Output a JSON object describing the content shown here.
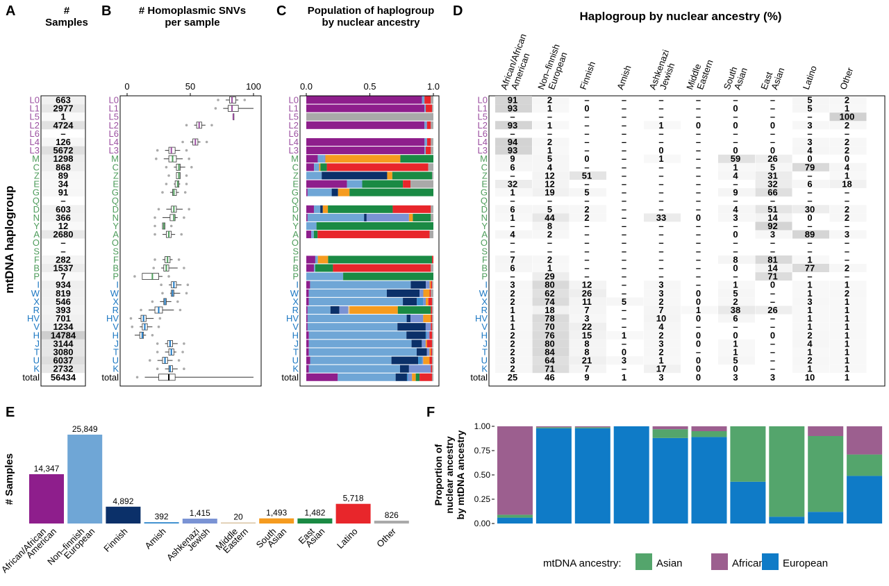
{
  "colors": {
    "African/African American": "#8e1e8c",
    "Non-finnish European": "#6fa6d6",
    "Finnish": "#0b3069",
    "Amish": "#3c8fcf",
    "Ashkenazi Jewish": "#7a93d4",
    "Middle Eastern": "#d9c3a0",
    "South Asian": "#f59b1f",
    "East Asian": "#1a8a44",
    "Latino": "#e8262b",
    "Other": "#a9a9a9",
    "clade_L": "#9b4fa0",
    "clade_A": "#4e9c5b",
    "clade_E": "#1b77c2",
    "mt_Asian": "#54a56c",
    "mt_African": "#9c5f8f",
    "mt_European": "#0f7bc7",
    "heat": "#c9c9c9"
  },
  "panels": {
    "A": {
      "letter": "A",
      "title_line1": "#",
      "title_line2": "Samples"
    },
    "B": {
      "letter": "B",
      "title_line1": "# Homoplasmic SNVs",
      "title_line2": "per sample",
      "ticks": [
        "0",
        "50",
        "100"
      ]
    },
    "C": {
      "letter": "C",
      "title_line1": "Population of haplogroup",
      "title_line2": "by nuclear ancestry",
      "ticks": [
        "0.0",
        "0.5",
        "1.0"
      ]
    },
    "D": {
      "letter": "D",
      "title": "Haplogroup by nuclear ancestry (%)"
    },
    "E": {
      "letter": "E",
      "ylabel": "# Samples"
    },
    "F": {
      "letter": "F",
      "ylabel1": "Proportion of",
      "ylabel2": "nuclear ancestry",
      "ylabel3": "by mtDNA ancestry",
      "legend_title": "mtDNA ancestry:"
    }
  },
  "row_axis_label": "mtDNA haplogroup",
  "haplogroups": [
    "L0",
    "L1",
    "L5",
    "L2",
    "L6",
    "L4",
    "L3",
    "M",
    "C",
    "Z",
    "E",
    "G",
    "Q",
    "D",
    "N",
    "Y",
    "A",
    "O",
    "S",
    "F",
    "B",
    "P",
    "I",
    "W",
    "X",
    "R",
    "HV",
    "V",
    "H",
    "J",
    "T",
    "U",
    "K",
    "total"
  ],
  "counts": [
    "663",
    "2977",
    "1",
    "4724",
    "–",
    "126",
    "5672",
    "1298",
    "868",
    "89",
    "34",
    "91",
    "–",
    "603",
    "366",
    "12",
    "2680",
    "–",
    "–",
    "282",
    "1537",
    "7",
    "934",
    "819",
    "546",
    "393",
    "701",
    "1234",
    "14784",
    "3144",
    "3080",
    "6037",
    "2732",
    "56434"
  ],
  "ancestry_labels": [
    [
      "African/African",
      "American"
    ],
    [
      "Non–finnish",
      "European"
    ],
    [
      "Finnish"
    ],
    [
      "Amish"
    ],
    [
      "Ashkenazi",
      "Jewish"
    ],
    [
      "Middle",
      "Eastern"
    ],
    [
      "South",
      "Asian"
    ],
    [
      "East",
      "Asian"
    ],
    [
      "Latino"
    ],
    [
      "Other"
    ]
  ],
  "pct_table": [
    [
      "91",
      "2",
      "–",
      "–",
      "–",
      "–",
      "–",
      "–",
      "5",
      "2"
    ],
    [
      "93",
      "1",
      "0",
      "–",
      "–",
      "–",
      "0",
      "–",
      "5",
      "1"
    ],
    [
      "–",
      "–",
      "–",
      "–",
      "–",
      "–",
      "–",
      "–",
      "–",
      "100"
    ],
    [
      "93",
      "1",
      "–",
      "–",
      "1",
      "0",
      "0",
      "0",
      "3",
      "2"
    ],
    [
      "–",
      "–",
      "–",
      "–",
      "–",
      "–",
      "–",
      "–",
      "–",
      "–"
    ],
    [
      "94",
      "2",
      "–",
      "–",
      "–",
      "–",
      "–",
      "–",
      "3",
      "2"
    ],
    [
      "93",
      "1",
      "–",
      "–",
      "0",
      "–",
      "0",
      "0",
      "4",
      "2"
    ],
    [
      "9",
      "5",
      "0",
      "–",
      "1",
      "–",
      "59",
      "26",
      "0",
      "0"
    ],
    [
      "6",
      "4",
      "–",
      "–",
      "–",
      "–",
      "1",
      "5",
      "79",
      "4"
    ],
    [
      "–",
      "12",
      "51",
      "–",
      "–",
      "–",
      "4",
      "31",
      "–",
      "1"
    ],
    [
      "32",
      "12",
      "–",
      "–",
      "–",
      "–",
      "–",
      "32",
      "6",
      "18"
    ],
    [
      "1",
      "19",
      "5",
      "–",
      "–",
      "–",
      "9",
      "66",
      "–",
      "–"
    ],
    [
      "–",
      "–",
      "–",
      "–",
      "–",
      "–",
      "–",
      "–",
      "–",
      "–"
    ],
    [
      "6",
      "5",
      "2",
      "–",
      "–",
      "–",
      "4",
      "51",
      "30",
      "2"
    ],
    [
      "1",
      "44",
      "2",
      "–",
      "33",
      "0",
      "3",
      "14",
      "0",
      "2"
    ],
    [
      "–",
      "8",
      "–",
      "–",
      "–",
      "–",
      "–",
      "92",
      "–",
      "–"
    ],
    [
      "4",
      "2",
      "–",
      "–",
      "–",
      "–",
      "0",
      "3",
      "89",
      "3"
    ],
    [
      "–",
      "–",
      "–",
      "–",
      "–",
      "–",
      "–",
      "–",
      "–",
      "–"
    ],
    [
      "–",
      "–",
      "–",
      "–",
      "–",
      "–",
      "–",
      "–",
      "–",
      "–"
    ],
    [
      "7",
      "2",
      "–",
      "–",
      "–",
      "–",
      "8",
      "81",
      "1",
      "–"
    ],
    [
      "6",
      "1",
      "–",
      "–",
      "–",
      "–",
      "0",
      "14",
      "77",
      "2"
    ],
    [
      "–",
      "29",
      "–",
      "–",
      "–",
      "–",
      "–",
      "71",
      "–",
      "–"
    ],
    [
      "3",
      "80",
      "12",
      "–",
      "3",
      "–",
      "1",
      "0",
      "1",
      "1"
    ],
    [
      "2",
      "62",
      "26",
      "–",
      "3",
      "0",
      "5",
      "–",
      "1",
      "2"
    ],
    [
      "2",
      "74",
      "11",
      "5",
      "2",
      "0",
      "2",
      "–",
      "3",
      "1"
    ],
    [
      "1",
      "18",
      "7",
      "–",
      "7",
      "1",
      "38",
      "26",
      "1",
      "1"
    ],
    [
      "1",
      "78",
      "3",
      "–",
      "10",
      "0",
      "6",
      "–",
      "1",
      "1"
    ],
    [
      "1",
      "70",
      "22",
      "–",
      "4",
      "–",
      "–",
      "–",
      "1",
      "1"
    ],
    [
      "2",
      "76",
      "15",
      "1",
      "2",
      "0",
      "0",
      "0",
      "2",
      "1"
    ],
    [
      "2",
      "80",
      "8",
      "–",
      "3",
      "0",
      "1",
      "–",
      "4",
      "1"
    ],
    [
      "2",
      "84",
      "8",
      "0",
      "2",
      "–",
      "1",
      "–",
      "1",
      "1"
    ],
    [
      "3",
      "64",
      "21",
      "3",
      "1",
      "0",
      "5",
      "–",
      "2",
      "1"
    ],
    [
      "2",
      "71",
      "7",
      "–",
      "17",
      "0",
      "0",
      "–",
      "1",
      "1"
    ],
    [
      "25",
      "46",
      "9",
      "1",
      "3",
      "0",
      "3",
      "3",
      "10",
      "1"
    ]
  ],
  "chart_data": [
    {
      "panel": "B",
      "type": "box",
      "title": "# Homoplasmic SNVs per sample",
      "xlim": [
        0,
        105
      ],
      "rows": [
        "L0",
        "L1",
        "L5",
        "L2",
        "L4",
        "L3",
        "M",
        "C",
        "Z",
        "E",
        "G",
        "D",
        "N",
        "Y",
        "A",
        "F",
        "B",
        "P",
        "I",
        "W",
        "X",
        "R",
        "HV",
        "V",
        "H",
        "J",
        "T",
        "U",
        "K",
        "total"
      ],
      "box_stats": {
        "L0": [
          78,
          81,
          83,
          86,
          88
        ],
        "L1": [
          76,
          80,
          83,
          88,
          100
        ],
        "L5": [
          84,
          84,
          84,
          84,
          84
        ],
        "L2": [
          53,
          55,
          57,
          59,
          62
        ],
        "L4": [
          50,
          52,
          54,
          56,
          58
        ],
        "L3": [
          30,
          33,
          35,
          38,
          42
        ],
        "M": [
          29,
          33,
          36,
          39,
          44
        ],
        "C": [
          37,
          39,
          41,
          42,
          46
        ],
        "Z": [
          39,
          39,
          41,
          42,
          42
        ],
        "E": [
          37,
          38,
          40,
          41,
          42
        ],
        "G": [
          34,
          36,
          37,
          39,
          41
        ],
        "D": [
          31,
          35,
          37,
          39,
          44
        ],
        "N": [
          28,
          34,
          37,
          38,
          40
        ],
        "Y": [
          28,
          28,
          29,
          30,
          30
        ],
        "A": [
          28,
          31,
          33,
          35,
          38
        ],
        "F": [
          28,
          30,
          32,
          34,
          36
        ],
        "B": [
          27,
          29,
          31,
          33,
          40
        ],
        "P": [
          12,
          12,
          20,
          25,
          28
        ],
        "I": [
          33,
          35,
          37,
          39,
          43
        ],
        "W": [
          34,
          35,
          36,
          37,
          42
        ],
        "X": [
          26,
          29,
          30,
          31,
          35
        ],
        "R": [
          17,
          22,
          25,
          28,
          37
        ],
        "HV": [
          9,
          11,
          13,
          15,
          21
        ],
        "V": [
          10,
          12,
          14,
          16,
          20
        ],
        "H": [
          6,
          10,
          12,
          13,
          15
        ],
        "J": [
          30,
          32,
          34,
          36,
          40
        ],
        "T": [
          30,
          33,
          35,
          37,
          39
        ],
        "U": [
          24,
          28,
          30,
          32,
          36
        ],
        "K": [
          30,
          33,
          34,
          36,
          40
        ],
        "total": [
          14,
          25,
          33,
          38,
          100
        ]
      }
    },
    {
      "panel": "C",
      "type": "bar",
      "title": "Population of haplogroup by nuclear ancestry",
      "orientation": "horizontal-stacked",
      "xlim": [
        0,
        1
      ],
      "categories": [
        "African/African American",
        "Non-finnish European",
        "Finnish",
        "Amish",
        "Ashkenazi Jewish",
        "Middle Eastern",
        "South Asian",
        "East Asian",
        "Latino",
        "Other"
      ]
    },
    {
      "panel": "E",
      "type": "bar",
      "ylabel": "# Samples",
      "categories": [
        "African/African American",
        "Non–finnish European",
        "Finnish",
        "Amish",
        "Ashkenazi Jewish",
        "Middle Eastern",
        "South Asian",
        "East Asian",
        "Latino",
        "Other"
      ],
      "values": [
        14347,
        25849,
        4892,
        392,
        1415,
        20,
        1493,
        1482,
        5718,
        826
      ],
      "value_labels": [
        "14,347",
        "25,849",
        "4,892",
        "392",
        "1,415",
        "20",
        "1,493",
        "1,482",
        "5,718",
        "826"
      ]
    },
    {
      "panel": "F",
      "type": "bar",
      "orientation": "vertical-stacked",
      "ylabel": "Proportion of nuclear ancestry by mtDNA ancestry",
      "ylim": [
        0,
        1
      ],
      "yticks": [
        "0.00",
        "0.25",
        "0.50",
        "0.75",
        "1.00"
      ],
      "series": [
        {
          "name": "European",
          "values": [
            0.06,
            0.98,
            0.98,
            1.0,
            0.88,
            0.89,
            0.43,
            0.07,
            0.12,
            0.49
          ]
        },
        {
          "name": "Asian",
          "values": [
            0.03,
            0.01,
            0.01,
            0.0,
            0.09,
            0.06,
            0.57,
            0.93,
            0.78,
            0.22
          ]
        },
        {
          "name": "African",
          "values": [
            0.91,
            0.01,
            0.01,
            0.0,
            0.03,
            0.05,
            0.0,
            0.0,
            0.1,
            0.29
          ]
        }
      ],
      "legend": [
        "Asian",
        "African",
        "European"
      ]
    }
  ]
}
